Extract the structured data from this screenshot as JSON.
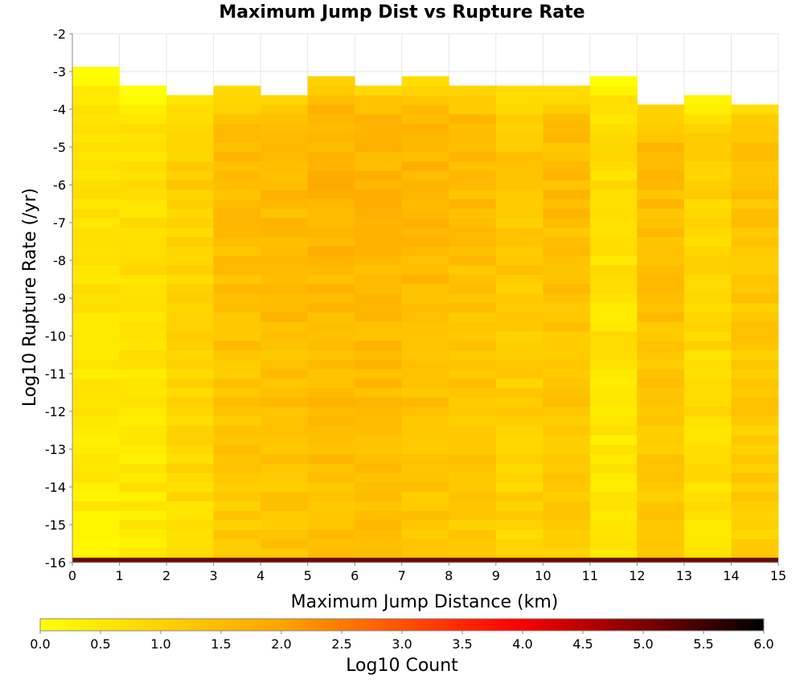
{
  "chart_data": {
    "type": "heatmap",
    "title": "Maximum Jump Dist vs Rupture Rate",
    "xlabel": "Maximum Jump Distance (km)",
    "ylabel": "Log10 Rupture Rate (/yr)",
    "xlim": [
      0,
      15
    ],
    "ylim": [
      -16,
      -2
    ],
    "x_ticks": [
      "0",
      "1",
      "2",
      "3",
      "4",
      "5",
      "6",
      "7",
      "8",
      "9",
      "10",
      "11",
      "12",
      "13",
      "14",
      "15"
    ],
    "y_ticks": [
      "-16",
      "-15",
      "-14",
      "-13",
      "-12",
      "-11",
      "-10",
      "-9",
      "-8",
      "-7",
      "-6",
      "-5",
      "-4",
      "-3",
      "-2"
    ],
    "bin_size_y": 0.25,
    "columns": [
      {
        "x0": 0,
        "x1": 1,
        "top": -3.0,
        "gaps": [
          -7.5,
          -8.0,
          -8.75,
          -11.25
        ],
        "base": 0.5
      },
      {
        "x0": 1,
        "x1": 2,
        "top": -3.5,
        "gaps": [
          -8.0,
          -15.5
        ],
        "base": 0.6
      },
      {
        "x0": 2,
        "x1": 3,
        "top": -3.75,
        "gaps": [],
        "base": 0.9
      },
      {
        "x0": 3,
        "x1": 4,
        "top": -3.5,
        "gaps": [],
        "base": 1.3
      },
      {
        "x0": 4,
        "x1": 5,
        "top": -3.75,
        "gaps": [],
        "base": 1.4
      },
      {
        "x0": 5,
        "x1": 6,
        "top": -3.25,
        "gaps": [],
        "base": 1.5
      },
      {
        "x0": 6,
        "x1": 7,
        "top": -3.5,
        "gaps": [],
        "base": 1.5
      },
      {
        "x0": 7,
        "x1": 8,
        "top": -3.25,
        "gaps": [],
        "base": 1.4
      },
      {
        "x0": 8,
        "x1": 9,
        "top": -3.5,
        "gaps": [],
        "base": 1.3
      },
      {
        "x0": 9,
        "x1": 10,
        "top": -3.5,
        "gaps": [],
        "base": 1.1
      },
      {
        "x0": 10,
        "x1": 11,
        "top": -3.5,
        "gaps": [],
        "base": 1.3
      },
      {
        "x0": 11,
        "x1": 12,
        "top": -3.25,
        "gaps": [
          -6.5,
          -13.75
        ],
        "base": 0.6
      },
      {
        "x0": 12,
        "x1": 13,
        "top": -4.0,
        "gaps": [],
        "base": 1.3
      },
      {
        "x0": 13,
        "x1": 14,
        "top": -3.75,
        "gaps": [
          -11.25,
          -12.25,
          -14.25
        ],
        "base": 0.8
      },
      {
        "x0": 14,
        "x1": 15,
        "top": -4.0,
        "gaps": [],
        "base": 1.2
      }
    ],
    "bottom_row": {
      "y0": -16,
      "y1": -15.875,
      "value": 4.8
    },
    "colorbar": {
      "label": "Log10 Count",
      "range": [
        0,
        6
      ],
      "ticks": [
        "0.0",
        "0.5",
        "1.0",
        "1.5",
        "2.0",
        "2.5",
        "3.0",
        "3.5",
        "4.0",
        "4.5",
        "5.0",
        "5.5",
        "6.0"
      ],
      "colors": [
        "#ffff00",
        "#ffa500",
        "#ff0000",
        "#000000"
      ]
    },
    "grid": true
  }
}
